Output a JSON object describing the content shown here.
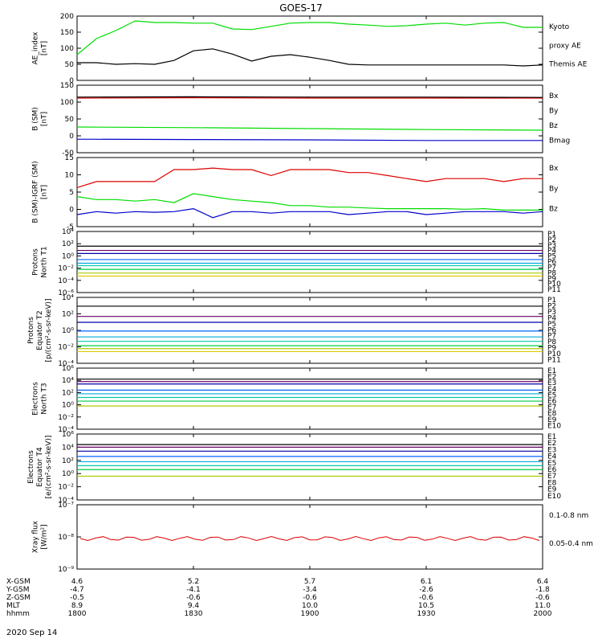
{
  "title": "GOES-17",
  "date": "2020 Sep 14",
  "colors": {
    "black": "#000000",
    "green": "#00dd00",
    "red": "#dd0000",
    "darkred": "#990000",
    "blue": "#0000cc",
    "p_list": [
      "#000000",
      "#660066",
      "#0000aa",
      "#0066ff",
      "#00aadd",
      "#00ccaa",
      "#00cc44",
      "#aacc00",
      "#ddcc00",
      "#ee7700",
      "#cc0000"
    ]
  },
  "panels": [
    {
      "id": "ae",
      "ylabel": [
        "AE_index",
        "[nT]"
      ],
      "ticks": [
        "200",
        "150",
        "100",
        "50",
        "0"
      ],
      "legend": [
        {
          "text": "Kyoto",
          "color": "#00dd00"
        },
        {
          "text": "proxy AE",
          "color": "#00dd00"
        },
        {
          "text": "Themis AE",
          "color": "#000000"
        }
      ]
    },
    {
      "id": "bsm",
      "ylabel": [
        "B (SM)",
        "[nT]"
      ],
      "ticks": [
        "150",
        "100",
        "50",
        "0",
        "-50"
      ],
      "legend": [
        {
          "text": "Bx",
          "color": "#0000cc"
        },
        {
          "text": "By",
          "color": "#00dd00"
        },
        {
          "text": "Bz",
          "color": "#dd0000"
        },
        {
          "text": "Bmag",
          "color": "#000000"
        }
      ]
    },
    {
      "id": "bigrf",
      "ylabel": [
        "B (SM)-IGRF (SM)",
        "[nT]"
      ],
      "ticks": [
        "15",
        "10",
        "5",
        "0",
        "-5"
      ],
      "legend": [
        {
          "text": "Bx",
          "color": "#0000cc"
        },
        {
          "text": "By",
          "color": "#00dd00"
        },
        {
          "text": "Bz",
          "color": "#dd0000"
        }
      ]
    },
    {
      "id": "pn",
      "ylabel": [
        "Protons",
        "North T1"
      ],
      "ticks": [
        "10⁴",
        "10²",
        "10⁰",
        "10⁻²",
        "10⁻⁴",
        "10⁻⁶"
      ],
      "legend": [
        "P1",
        "P2",
        "P3",
        "P4",
        "P5",
        "P6",
        "P7",
        "P8",
        "P9",
        "P10",
        "P11"
      ]
    },
    {
      "id": "pe",
      "ylabel": [
        "Protons",
        "Equator T2",
        "[p/(cm²-s-sr-keV)]"
      ],
      "ticks": [
        "10⁴",
        "10²",
        "10⁰",
        "10⁻²",
        "10⁻⁴"
      ],
      "legend": [
        "P1",
        "P2",
        "P3",
        "P4",
        "P5",
        "P6",
        "P7",
        "P8",
        "P9",
        "P10",
        "P11"
      ]
    },
    {
      "id": "en",
      "ylabel": [
        "Electrons",
        "North T3"
      ],
      "ticks": [
        "10⁶",
        "10⁴",
        "10²",
        "10⁰",
        "10⁻²",
        "10⁻⁴"
      ],
      "legend": [
        "E1",
        "E2",
        "E3",
        "E4",
        "E5",
        "E6",
        "E7",
        "E8",
        "E9",
        "E10"
      ]
    },
    {
      "id": "ee",
      "ylabel": [
        "Electrons",
        "Equator T4",
        "[e/(cm²-s-sr-keV)]"
      ],
      "ticks": [
        "10⁶",
        "10⁴",
        "10²",
        "10⁰",
        "10⁻²",
        "10⁻⁴"
      ],
      "legend": [
        "E1",
        "E2",
        "E3",
        "E4",
        "E5",
        "E6",
        "E7",
        "E8",
        "E9",
        "E10"
      ]
    },
    {
      "id": "xray",
      "ylabel": [
        "Xray flux",
        "[W/m²]"
      ],
      "ticks": [
        "10⁻⁷",
        "10⁻⁸",
        "10⁻⁹"
      ],
      "legend": [
        {
          "text": "0.1-0.8 nm",
          "color": "#dd0000"
        },
        {
          "text": "0.05-0.4 nm",
          "color": "#0000cc"
        }
      ]
    }
  ],
  "xaxis": {
    "row_labels": [
      "X-GSM",
      "Y-GSM",
      "Z-GSM",
      "MLT",
      "hhmm"
    ],
    "columns": [
      [
        "4.6",
        "-4.7",
        "-0.5",
        "8.9",
        "1800"
      ],
      [
        "5.2",
        "-4.1",
        "-0.6",
        "9.4",
        "1830"
      ],
      [
        "5.7",
        "-3.4",
        "-0.6",
        "10.0",
        "1900"
      ],
      [
        "6.1",
        "-2.6",
        "-0.6",
        "10.5",
        "1930"
      ],
      [
        "6.4",
        "-1.8",
        "-0.6",
        "11.0",
        "2000"
      ]
    ]
  },
  "chart_data": [
    {
      "type": "line",
      "panel": "ae",
      "xlabel": "hhmm",
      "ylabel": "AE_index [nT]",
      "ylim": [
        0,
        200
      ],
      "x": [
        1800,
        1805,
        1810,
        1815,
        1820,
        1825,
        1830,
        1835,
        1840,
        1845,
        1850,
        1855,
        1900,
        1905,
        1910,
        1915,
        1920,
        1925,
        1930,
        1935,
        1940,
        1945,
        1950,
        1955,
        2000
      ],
      "series": [
        {
          "name": "Kyoto proxy AE",
          "color": "#00dd00",
          "values": [
            80,
            130,
            155,
            185,
            180,
            180,
            178,
            178,
            160,
            158,
            168,
            178,
            180,
            180,
            175,
            172,
            168,
            170,
            175,
            178,
            172,
            178,
            180,
            165,
            165
          ]
        },
        {
          "name": "Themis AE",
          "color": "#000000",
          "values": [
            55,
            55,
            50,
            52,
            50,
            62,
            92,
            98,
            82,
            60,
            75,
            80,
            72,
            62,
            50,
            48,
            48,
            48,
            48,
            48,
            48,
            48,
            48,
            45,
            48
          ]
        }
      ]
    },
    {
      "type": "line",
      "panel": "bsm",
      "ylim": [
        -60,
        150
      ],
      "x": [
        1800,
        1830,
        1900,
        1930,
        2000
      ],
      "series": [
        {
          "name": "Bx",
          "color": "#0000cc",
          "values": [
            -18,
            -19,
            -20,
            -22,
            -22
          ]
        },
        {
          "name": "By",
          "color": "#00dd00",
          "values": [
            20,
            18,
            15,
            12,
            10
          ]
        },
        {
          "name": "Bz",
          "color": "#dd0000",
          "values": [
            110,
            111,
            110,
            110,
            110
          ]
        },
        {
          "name": "Bmag",
          "color": "#000000",
          "values": [
            113,
            114,
            113,
            113,
            112
          ]
        }
      ]
    },
    {
      "type": "line",
      "panel": "bigrf",
      "ylim": [
        -7,
        16
      ],
      "x": [
        1800,
        1805,
        1810,
        1815,
        1820,
        1825,
        1830,
        1835,
        1840,
        1845,
        1850,
        1855,
        1900,
        1905,
        1910,
        1915,
        1920,
        1925,
        1930,
        1935,
        1940,
        1945,
        1950,
        1955,
        2000
      ],
      "series": [
        {
          "name": "Bx",
          "color": "#0000cc",
          "values": [
            -3,
            -2,
            -2.5,
            -2,
            -2.2,
            -2,
            -1,
            -4,
            -2,
            -2,
            -2.5,
            -2,
            -2,
            -2,
            -3,
            -2.5,
            -2,
            -2,
            -3,
            -2.5,
            -2,
            -2,
            -2,
            -2.5,
            -2
          ]
        },
        {
          "name": "By",
          "color": "#00dd00",
          "values": [
            3,
            2,
            2,
            1.5,
            2,
            1,
            4,
            3,
            2,
            1.5,
            1,
            0,
            0,
            -0.5,
            -0.5,
            -0.8,
            -1,
            -1,
            -1,
            -1,
            -1.2,
            -1,
            -1.5,
            -1.5,
            -1.5
          ]
        },
        {
          "name": "Bz",
          "color": "#dd0000",
          "values": [
            6,
            8,
            8,
            8,
            8,
            12,
            12,
            12.5,
            12,
            12,
            10,
            12,
            12,
            12,
            11,
            11,
            10,
            9,
            8,
            9,
            9,
            9,
            8,
            9,
            9
          ]
        }
      ]
    },
    {
      "type": "line",
      "panel": "pn",
      "series_names": [
        "P1",
        "P2",
        "P3",
        "P4",
        "P5",
        "P6",
        "P7",
        "P8",
        "P9"
      ],
      "ylim_log10": [
        -6,
        4
      ],
      "series_log10": [
        1.6,
        0.9,
        0.4,
        -0.6,
        -1.2,
        -1.6,
        -2.2,
        -2.8,
        -3.3
      ]
    },
    {
      "type": "line",
      "panel": "pe",
      "series_names": [
        "P1",
        "P2",
        "P3",
        "P4",
        "P5",
        "P6",
        "P7",
        "P8",
        "P9"
      ],
      "ylim_log10": [
        -5,
        4
      ],
      "series_log10": [
        2.8,
        1.4,
        0.6,
        -0.6,
        -1.4,
        -2.0,
        -2.6,
        -3.0,
        -3.4
      ]
    },
    {
      "type": "line",
      "panel": "en",
      "series_names": [
        "E1",
        "E2",
        "E3",
        "E4",
        "E5",
        "E6",
        "E7",
        "E8"
      ],
      "ylim_log10": [
        -4,
        6
      ],
      "series_log10": [
        4.2,
        3.8,
        3.4,
        2.4,
        1.8,
        1.2,
        0.6,
        -0.2
      ]
    },
    {
      "type": "line",
      "panel": "ee",
      "series_names": [
        "E1",
        "E2",
        "E3",
        "E4",
        "E5",
        "E6",
        "E7",
        "E8"
      ],
      "ylim_log10": [
        -4,
        6
      ],
      "series_log10": [
        4.4,
        4.0,
        3.4,
        2.6,
        1.8,
        1.2,
        0.6,
        -0.4
      ]
    },
    {
      "type": "line",
      "panel": "xray",
      "name": "0.1-0.8 nm",
      "ylim_log10": [
        -9,
        -7
      ],
      "value_log10": -8.05
    }
  ]
}
